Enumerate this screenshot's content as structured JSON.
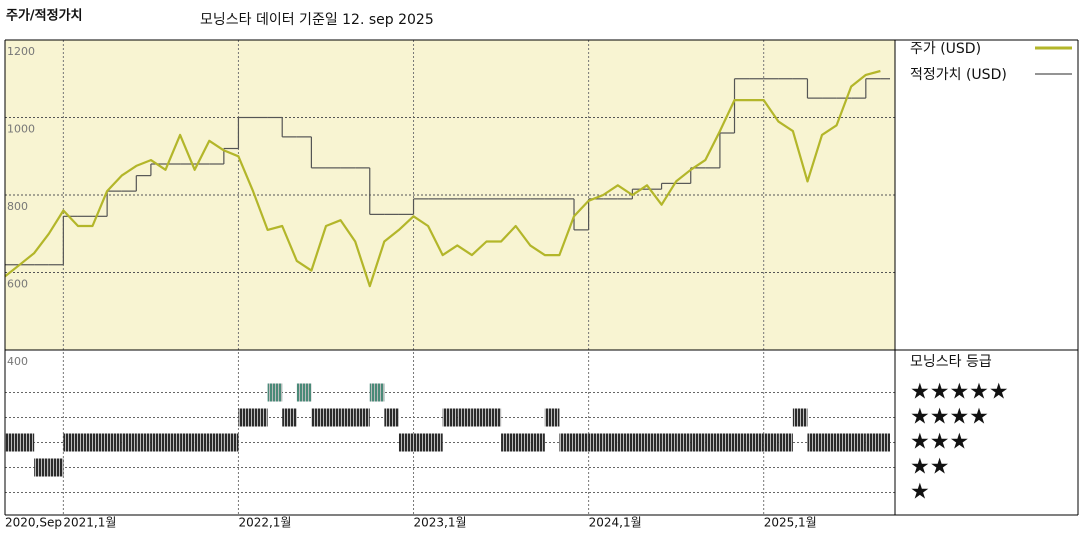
{
  "chart_data": {
    "type": "line",
    "title": "주가/적정가치",
    "subtitle": "모닝스타 데이터 기준일 12. sep 2025",
    "x": [
      "2020-09",
      "2020-10",
      "2020-11",
      "2020-12",
      "2021-01",
      "2021-02",
      "2021-03",
      "2021-04",
      "2021-05",
      "2021-06",
      "2021-07",
      "2021-08",
      "2021-09",
      "2021-10",
      "2021-11",
      "2021-12",
      "2022-01",
      "2022-02",
      "2022-03",
      "2022-04",
      "2022-05",
      "2022-06",
      "2022-07",
      "2022-08",
      "2022-09",
      "2022-10",
      "2022-11",
      "2022-12",
      "2023-01",
      "2023-02",
      "2023-03",
      "2023-04",
      "2023-05",
      "2023-06",
      "2023-07",
      "2023-08",
      "2023-09",
      "2023-10",
      "2023-11",
      "2023-12",
      "2024-01",
      "2024-02",
      "2024-03",
      "2024-04",
      "2024-05",
      "2024-06",
      "2024-07",
      "2024-08",
      "2024-09",
      "2024-10",
      "2024-11",
      "2024-12",
      "2025-01",
      "2025-02",
      "2025-03",
      "2025-04",
      "2025-05",
      "2025-06",
      "2025-07",
      "2025-08",
      "2025-09"
    ],
    "xlim": [
      "2020-09",
      "2025-10"
    ],
    "xticks": [
      {
        "value": "2020-09",
        "label": "2020,Sep"
      },
      {
        "value": "2021-01",
        "label": "2021,1월"
      },
      {
        "value": "2022-01",
        "label": "2022,1월"
      },
      {
        "value": "2023-01",
        "label": "2023,1월"
      },
      {
        "value": "2024-01",
        "label": "2024,1월"
      },
      {
        "value": "2025-01",
        "label": "2025,1월"
      }
    ],
    "ylim": [
      400,
      1200
    ],
    "yticks": [
      400,
      600,
      800,
      1000,
      1200
    ],
    "grid": true,
    "series": [
      {
        "name": "주가 (USD)",
        "color": "#b3b62a",
        "values": [
          590,
          620,
          650,
          700,
          760,
          720,
          720,
          810,
          850,
          875,
          890,
          865,
          955,
          865,
          940,
          915,
          900,
          810,
          710,
          720,
          630,
          605,
          720,
          735,
          680,
          565,
          680,
          710,
          745,
          720,
          645,
          670,
          645,
          680,
          680,
          720,
          670,
          645,
          645,
          745,
          785,
          800,
          825,
          800,
          825,
          775,
          835,
          865,
          890,
          965,
          1045,
          1045,
          1045,
          990,
          965,
          835,
          955,
          980,
          1080,
          1110,
          1120
        ]
      },
      {
        "name": "적정가치 (USD)",
        "color": "#555555",
        "step": true,
        "values": [
          620,
          620,
          620,
          620,
          745,
          745,
          745,
          810,
          810,
          850,
          880,
          880,
          880,
          880,
          880,
          920,
          1000,
          1000,
          1000,
          950,
          950,
          870,
          870,
          870,
          870,
          750,
          750,
          750,
          790,
          790,
          790,
          790,
          790,
          790,
          790,
          790,
          790,
          790,
          790,
          710,
          790,
          790,
          790,
          815,
          815,
          830,
          830,
          870,
          870,
          960,
          1100,
          1100,
          1100,
          1100,
          1100,
          1050,
          1050,
          1050,
          1050,
          1100,
          1100
        ]
      }
    ],
    "rating": {
      "title": "모닝스타 등급",
      "ylim": [
        0.1,
        6.7
      ],
      "yticks": [
        {
          "value": 5,
          "label": "★★★★★"
        },
        {
          "value": 4,
          "label": "★★★★"
        },
        {
          "value": 3,
          "label": "★★★"
        },
        {
          "value": 2,
          "label": "★★"
        },
        {
          "value": 1,
          "label": "★"
        }
      ],
      "level_colors": [
        "#4a8a78",
        "#2b2b2b",
        "#2b2b2b",
        "#2b2b2b",
        "#2b2b2b"
      ],
      "values": [
        3,
        3,
        2,
        2,
        3,
        3,
        3,
        3,
        3,
        3,
        3,
        3,
        3,
        3,
        3,
        3,
        4,
        4,
        5,
        4,
        5,
        4,
        4,
        4,
        4,
        5,
        4,
        3,
        3,
        3,
        4,
        4,
        4,
        4,
        3,
        3,
        3,
        4,
        3,
        3,
        3,
        3,
        3,
        3,
        3,
        3,
        3,
        3,
        3,
        3,
        3,
        3,
        3,
        3,
        4,
        3,
        3,
        3,
        3,
        3,
        3
      ]
    }
  }
}
